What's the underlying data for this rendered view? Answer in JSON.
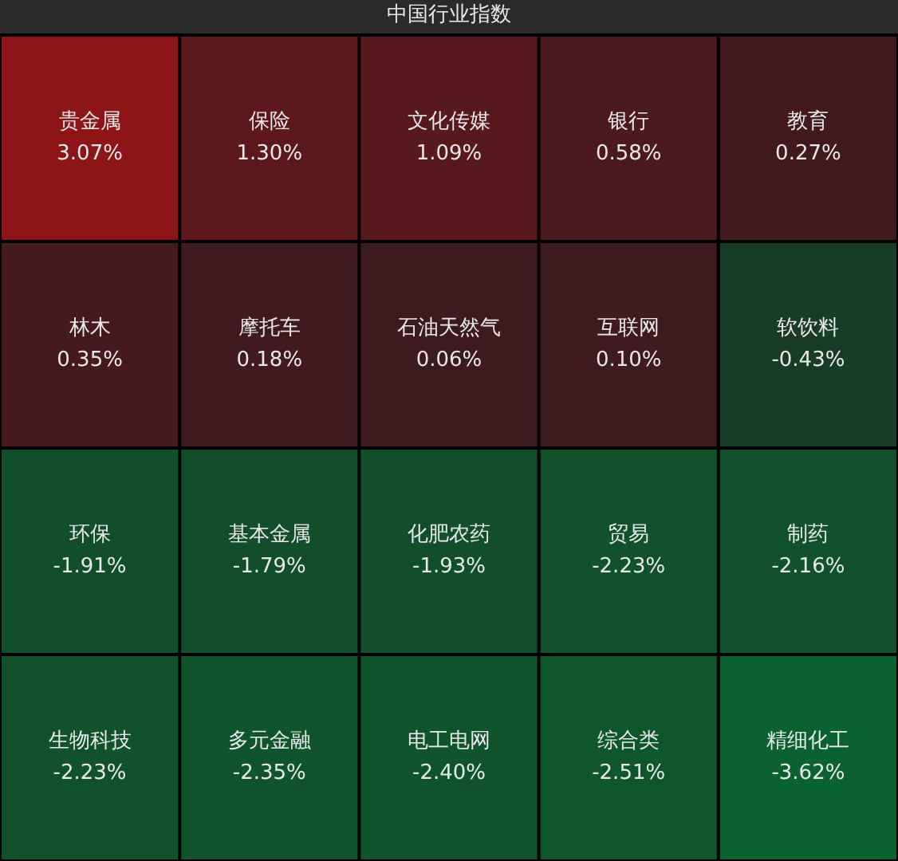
{
  "chart_data": {
    "type": "other",
    "title": "中国行业指数",
    "categories": [
      "贵金属",
      "保险",
      "文化传媒",
      "银行",
      "教育",
      "林木",
      "摩托车",
      "石油天然气",
      "互联网",
      "软饮料",
      "环保",
      "基本金属",
      "化肥农药",
      "贸易",
      "制药",
      "生物科技",
      "多元金融",
      "电工电网",
      "综合类",
      "精细化工"
    ],
    "values": [
      3.07,
      1.3,
      1.09,
      0.58,
      0.27,
      0.35,
      0.18,
      0.06,
      0.1,
      -0.43,
      -1.91,
      -1.79,
      -1.93,
      -2.23,
      -2.16,
      -2.23,
      -2.35,
      -2.4,
      -2.51,
      -3.62
    ],
    "value_labels": [
      "3.07%",
      "1.30%",
      "1.09%",
      "0.58%",
      "0.27%",
      "0.35%",
      "0.18%",
      "0.06%",
      "0.10%",
      "-0.43%",
      "-1.91%",
      "-1.79%",
      "-1.93%",
      "-2.23%",
      "-2.16%",
      "-2.23%",
      "-2.35%",
      "-2.40%",
      "-2.51%",
      "-3.62%"
    ]
  }
}
